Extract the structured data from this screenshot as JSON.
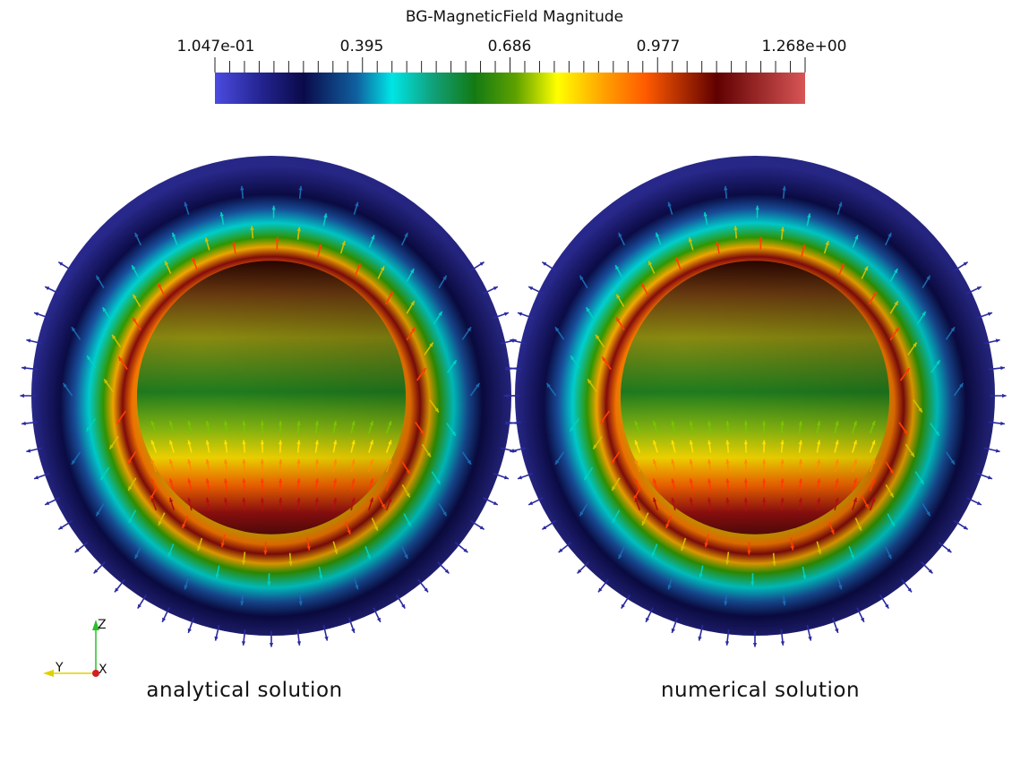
{
  "colorbar": {
    "title": "BG-MagneticField Magnitude",
    "tick_labels": [
      "1.047e-01",
      "0.395",
      "0.686",
      "0.977",
      "1.268e+00"
    ],
    "range": [
      0.1047,
      1.268
    ]
  },
  "views": [
    {
      "caption": "analytical solution"
    },
    {
      "caption": "numerical solution"
    }
  ],
  "orientation_axes": {
    "z": "Z",
    "y": "Y",
    "x": "X"
  },
  "colors": {
    "low": "#3d3dd6",
    "navy": "#141c6b",
    "cyan": "#00e5e5",
    "green": "#1f8f1f",
    "yellow": "#ffff00",
    "orange": "#ff6a00",
    "darkred": "#5c0000",
    "high": "#d44a4a"
  }
}
